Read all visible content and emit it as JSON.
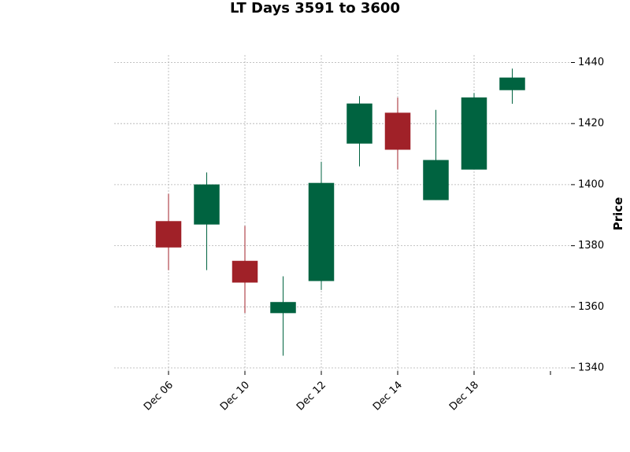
{
  "chart_data": {
    "type": "candlestick",
    "title": "LT Days 3591 to 3600",
    "ylabel": "Price",
    "xlabel": "",
    "ylim": [
      1340,
      1442
    ],
    "y_ticks": [
      1340,
      1360,
      1380,
      1400,
      1420,
      1440
    ],
    "y_axis_side": "right",
    "grid": true,
    "up_color": "#006340",
    "down_color": "#a02128",
    "x_tick_labels": [
      "Dec 06",
      "Dec 10",
      "Dec 12",
      "Dec 14",
      "Dec 18",
      ""
    ],
    "x_tick_positions": [
      0,
      2,
      4,
      6,
      8,
      10
    ],
    "candles": [
      {
        "open": 1388,
        "high": 1397,
        "low": 1372,
        "close": 1379.5
      },
      {
        "open": 1387,
        "high": 1404,
        "low": 1372,
        "close": 1400
      },
      {
        "open": 1375,
        "high": 1386.5,
        "low": 1358,
        "close": 1368
      },
      {
        "open": 1358,
        "high": 1370,
        "low": 1344,
        "close": 1361.5
      },
      {
        "open": 1368.5,
        "high": 1407.5,
        "low": 1365.5,
        "close": 1400.5
      },
      {
        "open": 1413.5,
        "high": 1429,
        "low": 1406,
        "close": 1426.5
      },
      {
        "open": 1423.5,
        "high": 1428.5,
        "low": 1405,
        "close": 1411.5
      },
      {
        "open": 1395,
        "high": 1424.5,
        "low": 1395,
        "close": 1408
      },
      {
        "open": 1405,
        "high": 1430,
        "low": 1405,
        "close": 1428.5
      },
      {
        "open": 1431,
        "high": 1438,
        "low": 1426.5,
        "close": 1435
      }
    ]
  }
}
